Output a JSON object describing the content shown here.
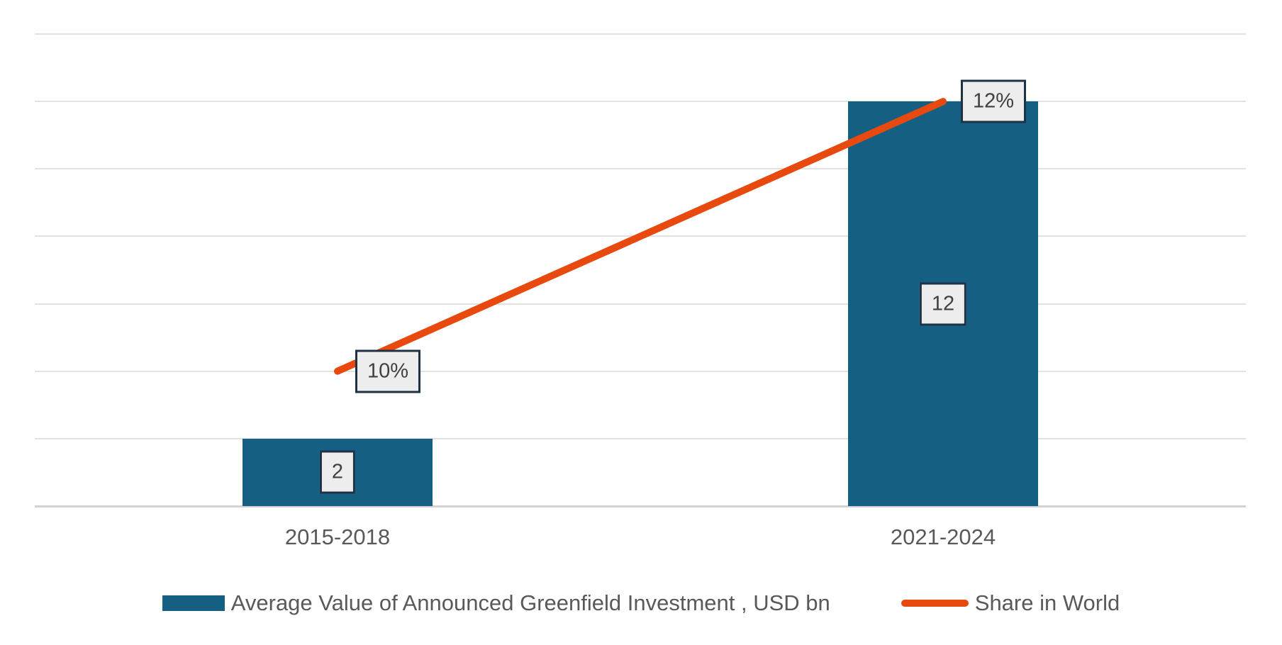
{
  "chart_data": {
    "type": "combo-bar-line",
    "title": "",
    "xlabel": "",
    "ylabel": "",
    "categories": [
      "2015-2018",
      "2021-2024"
    ],
    "series": [
      {
        "name": "Average Value of Announced Greenfield Investment , USD bn",
        "type": "bar",
        "axis": "primary",
        "values": [
          2,
          12
        ],
        "data_labels": [
          "2",
          "12"
        ],
        "color": "#156082"
      },
      {
        "name": "Share in World",
        "type": "line",
        "axis": "secondary",
        "values": [
          10,
          12
        ],
        "data_labels": [
          "10%",
          "12%"
        ],
        "color": "#E8490F"
      }
    ],
    "primary_axis": {
      "min": 0,
      "max": 14,
      "gridline_step": 2,
      "labels_visible": false
    },
    "secondary_axis": {
      "min": 9,
      "max": 12.5,
      "labels_visible": false
    },
    "grid": true,
    "legend_position": "bottom"
  },
  "style": {
    "bar_color": "#156082",
    "line_color": "#E8490F",
    "gridline_color": "#E2E2E2",
    "axis_line_color": "#D2D2D2",
    "label_box_fill": "#EDEDED",
    "label_box_border": "#1D3245",
    "label_text_color": "#404040",
    "category_text_color": "#595959",
    "legend_text_color": "#595959"
  }
}
